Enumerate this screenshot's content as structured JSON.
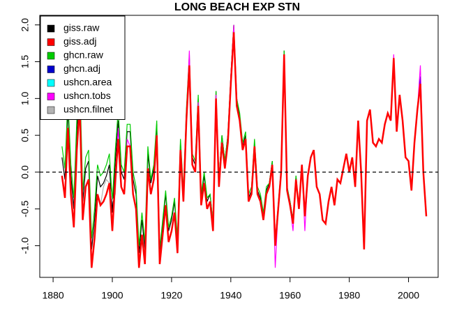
{
  "chart_data": {
    "type": "line",
    "title": "LONG BEACH EXP STN",
    "x": [
      1883,
      1884,
      1885,
      1886,
      1887,
      1888,
      1889,
      1890,
      1891,
      1892,
      1893,
      1894,
      1895,
      1896,
      1897,
      1898,
      1899,
      1900,
      1901,
      1902,
      1903,
      1904,
      1905,
      1906,
      1907,
      1908,
      1909,
      1910,
      1911,
      1912,
      1913,
      1914,
      1915,
      1916,
      1917,
      1918,
      1919,
      1920,
      1921,
      1922,
      1923,
      1924,
      1925,
      1926,
      1927,
      1928,
      1929,
      1930,
      1931,
      1932,
      1933,
      1934,
      1935,
      1936,
      1937,
      1938,
      1939,
      1940,
      1941,
      1942,
      1943,
      1944,
      1945,
      1946,
      1947,
      1948,
      1949,
      1950,
      1951,
      1952,
      1953,
      1954,
      1955,
      1956,
      1957,
      1958,
      1959,
      1960,
      1961,
      1962,
      1963,
      1964,
      1965,
      1966,
      1967,
      1968,
      1969,
      1970,
      1971,
      1972,
      1973,
      1974,
      1975,
      1976,
      1977,
      1978,
      1979,
      1980,
      1981,
      1982,
      1983,
      1984,
      1985,
      1986,
      1987,
      1988,
      1989,
      1990,
      1991,
      1992,
      1993,
      1994,
      1995,
      1996,
      1997,
      1998,
      1999,
      2000,
      2001,
      2002,
      2003,
      2004,
      2005,
      2006
    ],
    "series": [
      {
        "name": "giss.raw",
        "color": "#000000",
        "values": [
          0.2,
          -0.1,
          0.85,
          -0.05,
          -0.5,
          0.55,
          1.15,
          -0.4,
          0.05,
          0.15,
          -1.05,
          -0.65,
          -0.05,
          -0.2,
          -0.15,
          -0.05,
          0.1,
          -0.55,
          0.15,
          0.7,
          0.0,
          -0.1,
          0.55,
          0.55,
          -0.1,
          -0.3,
          -1.1,
          -0.65,
          -1.05,
          0.25,
          -0.15,
          0.05,
          0.65,
          -1.1,
          -0.7,
          -0.3,
          -0.8,
          -0.65,
          -0.4,
          -0.95,
          0.4,
          -0.3,
          0.8,
          1.55,
          0.2,
          0.1,
          1.0,
          -0.35,
          -0.05,
          -0.4,
          -0.3,
          -0.7,
          1.1,
          -0.1,
          0.5,
          0.15,
          0.5,
          1.3,
          2.0,
          1.0,
          0.75,
          0.35,
          0.5,
          -0.35,
          -0.25,
          0.4,
          -0.25,
          -0.35,
          -0.6,
          -0.25,
          -0.15,
          0.15,
          -0.95,
          -0.45,
          0.05,
          1.65,
          -0.2,
          -0.4,
          -0.65,
          -0.05,
          -0.5,
          0.1,
          -0.6,
          -0.05,
          0.2,
          0.3,
          -0.2,
          -0.3,
          -0.65,
          -0.7,
          -0.4,
          -0.2,
          -0.45,
          -0.1,
          -0.15,
          0.05,
          0.25,
          0.0,
          0.2,
          -0.2,
          0.7,
          0.0,
          -1.05,
          0.7,
          0.85,
          0.4,
          0.35,
          0.45,
          0.4,
          0.65,
          0.8,
          0.7,
          1.55,
          0.55,
          1.05,
          0.7,
          0.2,
          0.15,
          -0.25,
          0.4,
          0.85,
          1.2,
          0.0,
          -0.6
        ]
      },
      {
        "name": "giss.adj",
        "color": "#ff0000",
        "values": [
          -0.05,
          -0.35,
          0.6,
          -0.3,
          -0.75,
          0.3,
          0.9,
          -0.65,
          -0.2,
          -0.1,
          -1.3,
          -0.9,
          -0.3,
          -0.45,
          -0.4,
          -0.3,
          -0.15,
          -0.8,
          -0.1,
          0.45,
          -0.2,
          -0.3,
          0.35,
          0.35,
          -0.3,
          -0.5,
          -1.3,
          -0.85,
          -1.25,
          0.05,
          -0.3,
          -0.1,
          0.5,
          -1.25,
          -0.85,
          -0.45,
          -0.95,
          -0.8,
          -0.55,
          -1.1,
          0.3,
          -0.4,
          0.7,
          1.45,
          0.1,
          0.0,
          0.9,
          -0.45,
          -0.15,
          -0.5,
          -0.4,
          -0.8,
          1.0,
          -0.2,
          0.4,
          0.05,
          0.4,
          1.2,
          1.9,
          0.9,
          0.7,
          0.3,
          0.45,
          -0.4,
          -0.3,
          0.35,
          -0.3,
          -0.4,
          -0.65,
          -0.3,
          -0.2,
          0.1,
          -1.0,
          -0.5,
          0.0,
          1.6,
          -0.25,
          -0.45,
          -0.7,
          -0.1,
          -0.5,
          0.1,
          -0.6,
          -0.05,
          0.2,
          0.3,
          -0.2,
          -0.3,
          -0.65,
          -0.7,
          -0.4,
          -0.2,
          -0.45,
          -0.1,
          -0.15,
          0.05,
          0.25,
          0.0,
          0.2,
          -0.2,
          0.7,
          0.0,
          -1.05,
          0.7,
          0.85,
          0.4,
          0.35,
          0.45,
          0.4,
          0.65,
          0.8,
          0.7,
          1.55,
          0.55,
          1.05,
          0.7,
          0.2,
          0.15,
          -0.25,
          0.4,
          0.85,
          1.2,
          0.0,
          -0.6
        ]
      },
      {
        "name": "ghcn.raw",
        "color": "#00cc00",
        "values": [
          0.35,
          0.05,
          1.0,
          0.1,
          -0.35,
          0.7,
          1.3,
          -0.25,
          0.2,
          0.3,
          -0.9,
          -0.5,
          0.1,
          -0.05,
          0.0,
          0.1,
          0.25,
          -0.4,
          0.3,
          0.85,
          0.1,
          0.0,
          0.65,
          0.65,
          0.0,
          -0.2,
          -1.0,
          -0.55,
          -0.95,
          0.35,
          -0.1,
          0.1,
          0.7,
          -1.05,
          -0.65,
          -0.25,
          -0.75,
          -0.6,
          -0.35,
          -0.9,
          0.45,
          -0.25,
          0.85,
          1.6,
          0.25,
          0.15,
          1.05,
          -0.3,
          0.0,
          -0.35,
          -0.3,
          -0.7,
          1.1,
          -0.1,
          0.5,
          0.15,
          0.5,
          1.3,
          2.0,
          1.0,
          0.8,
          0.4,
          0.55,
          -0.3,
          -0.2,
          0.45,
          -0.2,
          -0.3,
          -0.55,
          -0.2,
          -0.15,
          0.15,
          -0.95,
          -0.45,
          0.05,
          1.65,
          -0.2,
          -0.4,
          -0.65,
          -0.05,
          -0.5,
          0.1,
          -0.6,
          -0.05,
          0.2,
          0.3,
          -0.2,
          -0.3,
          -0.65,
          -0.7,
          -0.4,
          -0.2,
          -0.45,
          -0.1,
          -0.15,
          0.05,
          0.25,
          0.0,
          0.2,
          -0.2,
          0.7,
          0.0,
          -1.05,
          0.7,
          0.85,
          0.4,
          0.35,
          0.45,
          0.4,
          0.65,
          0.8,
          0.7,
          1.55,
          0.55,
          1.05,
          0.7,
          0.2,
          0.15,
          -0.25,
          0.4,
          0.85,
          1.2,
          0.0,
          -0.6
        ]
      },
      {
        "name": "ghcn.adj",
        "color": "#0000cc",
        "values": [
          -0.05,
          -0.35,
          0.6,
          -0.3,
          -0.75,
          0.3,
          0.9,
          -0.65,
          -0.2,
          -0.1,
          -1.3,
          -0.9,
          -0.3,
          -0.45,
          -0.4,
          -0.3,
          -0.15,
          -0.8,
          -0.1,
          0.45,
          -0.2,
          -0.3,
          0.35,
          0.35,
          -0.3,
          -0.5,
          -1.3,
          -0.85,
          -1.25,
          0.05,
          -0.3,
          -0.1,
          0.5,
          -1.25,
          -0.85,
          -0.45,
          -0.95,
          -0.8,
          -0.55,
          -1.1,
          0.3,
          -0.4,
          0.7,
          1.45,
          0.1,
          0.0,
          0.9,
          -0.45,
          -0.15,
          -0.5,
          -0.4,
          -0.8,
          1.0,
          -0.2,
          0.4,
          0.05,
          0.4,
          1.2,
          1.9,
          0.9,
          0.7,
          0.3,
          0.45,
          -0.4,
          -0.3,
          0.35,
          -0.3,
          -0.4,
          -0.65,
          -0.3,
          -0.2,
          0.1,
          -1.0,
          -0.5,
          0.0,
          1.6,
          -0.25,
          -0.45,
          -0.7,
          -0.1,
          -0.5,
          0.1,
          -0.6,
          -0.05,
          0.2,
          0.3,
          -0.2,
          -0.3,
          -0.65,
          -0.7,
          -0.4,
          -0.2,
          -0.45,
          -0.1,
          -0.15,
          0.05,
          0.25,
          0.0,
          0.2,
          -0.2,
          0.7,
          0.0,
          -1.05,
          0.7,
          0.85,
          0.4,
          0.35,
          0.45,
          0.4,
          0.65,
          0.8,
          0.7,
          1.55,
          0.55,
          1.05,
          0.7,
          0.2,
          0.15,
          -0.25,
          0.4,
          0.85,
          1.3,
          0.0,
          -0.6
        ]
      },
      {
        "name": "ushcn.area",
        "color": "#00ffff",
        "values": [
          -0.05,
          -0.35,
          0.6,
          -0.3,
          -0.75,
          0.3,
          0.9,
          -0.65,
          -0.2,
          -0.1,
          -1.3,
          -0.9,
          -0.3,
          -0.45,
          -0.4,
          -0.3,
          -0.15,
          -0.8,
          -0.1,
          0.45,
          -0.2,
          -0.3,
          0.35,
          0.35,
          -0.3,
          -0.5,
          -1.3,
          -0.85,
          -1.25,
          0.05,
          -0.3,
          -0.1,
          0.5,
          -1.25,
          -0.85,
          -0.45,
          -0.95,
          -0.8,
          -0.55,
          -1.1,
          0.3,
          -0.4,
          0.7,
          1.45,
          0.1,
          0.0,
          0.9,
          -0.45,
          -0.15,
          -0.5,
          -0.4,
          -0.8,
          1.0,
          -0.2,
          0.4,
          0.05,
          0.4,
          1.2,
          1.9,
          0.9,
          0.7,
          0.3,
          0.45,
          -0.4,
          -0.3,
          0.35,
          -0.3,
          -0.4,
          -0.65,
          -0.3,
          -0.2,
          0.1,
          -1.0,
          -0.5,
          0.0,
          1.6,
          -0.25,
          -0.45,
          -0.7,
          -0.1,
          -0.5,
          0.1,
          -0.6,
          -0.05,
          0.2,
          0.3,
          -0.2,
          -0.3,
          -0.65,
          -0.7,
          -0.4,
          -0.2,
          -0.45,
          -0.1,
          -0.15,
          0.05,
          0.25,
          0.0,
          0.2,
          -0.2,
          0.7,
          0.0,
          -1.05,
          0.7,
          0.85,
          0.4,
          0.35,
          0.45,
          0.4,
          0.65,
          0.8,
          0.7,
          1.55,
          0.55,
          1.05,
          0.7,
          0.2,
          0.15,
          -0.25,
          0.4,
          0.85,
          1.2,
          0.0,
          -0.6
        ]
      },
      {
        "name": "ushcn.tobs",
        "color": "#ff00ff",
        "values": [
          -0.05,
          -0.35,
          0.6,
          -0.3,
          -0.75,
          0.3,
          0.9,
          -0.65,
          -0.2,
          -0.1,
          -1.3,
          -0.9,
          -0.3,
          -0.45,
          -0.4,
          -0.3,
          -0.15,
          -0.8,
          -0.1,
          0.6,
          -0.2,
          -0.3,
          0.45,
          0.35,
          -0.3,
          -0.5,
          -1.3,
          -0.85,
          -1.25,
          0.05,
          -0.3,
          -0.1,
          0.5,
          -1.25,
          -0.85,
          -0.45,
          -0.95,
          -0.8,
          -0.55,
          -1.1,
          0.3,
          -0.4,
          0.7,
          1.65,
          0.1,
          0.0,
          0.95,
          -0.45,
          -0.15,
          -0.5,
          -0.4,
          -0.8,
          1.05,
          -0.2,
          0.4,
          0.05,
          0.45,
          1.3,
          2.0,
          0.9,
          0.7,
          0.3,
          0.45,
          -0.4,
          -0.3,
          0.35,
          -0.3,
          -0.4,
          -0.65,
          -0.3,
          -0.2,
          0.1,
          -1.3,
          -0.5,
          0.0,
          1.6,
          -0.25,
          -0.45,
          -0.8,
          -0.1,
          -0.5,
          0.1,
          -0.8,
          -0.05,
          0.2,
          0.3,
          -0.2,
          -0.3,
          -0.65,
          -0.7,
          -0.4,
          -0.2,
          -0.45,
          -0.1,
          -0.15,
          0.05,
          0.25,
          0.0,
          0.2,
          -0.2,
          0.7,
          0.0,
          -1.05,
          0.7,
          0.85,
          0.4,
          0.35,
          0.45,
          0.4,
          0.65,
          0.8,
          0.7,
          1.6,
          0.55,
          1.05,
          0.7,
          0.2,
          0.15,
          -0.25,
          0.4,
          0.85,
          1.45,
          0.0,
          -0.6
        ]
      },
      {
        "name": "ushcn.filnet",
        "color": "#b3b3b3",
        "values": [
          -0.05,
          -0.35,
          0.6,
          -0.3,
          -0.75,
          0.3,
          0.9,
          -0.65,
          -0.2,
          -0.1,
          -1.3,
          -0.9,
          -0.3,
          -0.45,
          -0.2,
          -0.1,
          -0.15,
          -0.4,
          -0.3,
          0.45,
          -0.2,
          -0.3,
          0.35,
          0.35,
          -0.3,
          -0.5,
          -1.3,
          -0.85,
          -1.25,
          0.05,
          -0.3,
          -0.1,
          0.5,
          -1.25,
          -0.85,
          -0.45,
          -0.95,
          -0.8,
          -0.55,
          -1.1,
          0.3,
          -0.4,
          0.7,
          1.45,
          0.1,
          0.0,
          0.9,
          -0.45,
          -0.15,
          -0.5,
          -0.4,
          -0.8,
          1.0,
          -0.2,
          0.4,
          0.05,
          0.4,
          1.2,
          1.9,
          0.9,
          0.7,
          0.3,
          0.45,
          -0.4,
          -0.3,
          0.35,
          -0.3,
          -0.4,
          -0.65,
          -0.3,
          -0.2,
          0.1,
          -1.0,
          -0.5,
          0.0,
          1.6,
          -0.25,
          -0.45,
          -0.7,
          -0.1,
          -0.5,
          0.1,
          -0.6,
          -0.05,
          0.2,
          0.3,
          -0.2,
          -0.3,
          -0.65,
          -0.7,
          -0.4,
          -0.2,
          -0.45,
          -0.1,
          -0.15,
          0.05,
          0.25,
          0.0,
          0.2,
          -0.2,
          0.7,
          0.0,
          -1.05,
          0.7,
          0.85,
          0.4,
          0.35,
          0.45,
          0.4,
          0.65,
          0.8,
          0.7,
          1.55,
          0.55,
          1.05,
          0.7,
          0.2,
          0.15,
          -0.25,
          0.4,
          0.85,
          1.2,
          0.0,
          -0.6
        ]
      }
    ],
    "xlim": [
      1875.5,
      2010
    ],
    "xticks": [
      1880,
      1900,
      1920,
      1940,
      1960,
      1980,
      2000
    ],
    "ylim": [
      -1.43,
      2.13
    ],
    "yticks": [
      {
        "value": -1,
        "label": "-1.0"
      },
      -0.5,
      {
        "value": 0,
        "label": "0.0"
      },
      0.5,
      {
        "value": 1,
        "label": "1.0"
      },
      1.5,
      {
        "value": 2,
        "label": "2.0"
      }
    ],
    "hline": 0,
    "legend": "top-left"
  }
}
